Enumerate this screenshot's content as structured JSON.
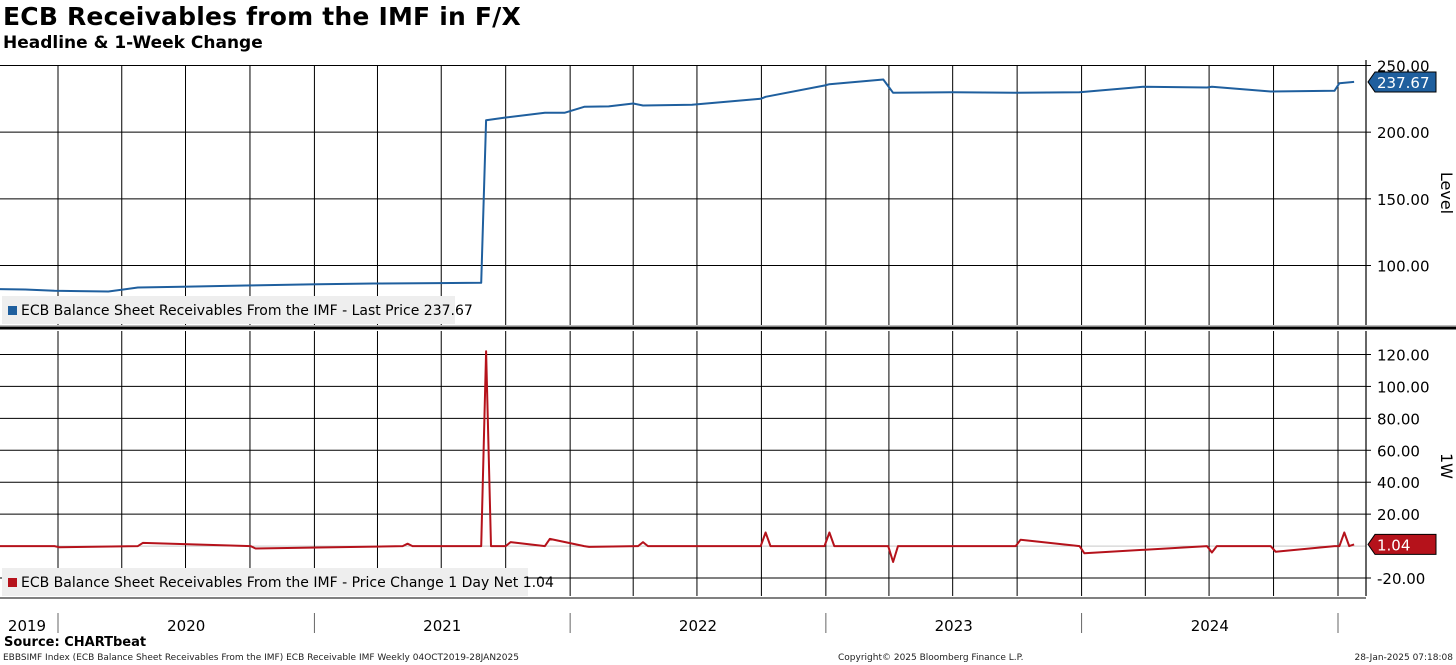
{
  "header": {
    "title": "ECB Receivables from the IMF in F/X",
    "subtitle": "Headline & 1-Week Change"
  },
  "footer": {
    "source": "Source: CHARTbeat",
    "index_info": "EBBSIMF Index (ECB Balance Sheet Receivables From the IMF) ECB Receivable IMF  Weekly 04OCT2019-28JAN2025",
    "copyright": "Copyright© 2025 Bloomberg Finance L.P.",
    "timestamp": "28-Jan-2025 07:18:08"
  },
  "colors": {
    "level_series": "#1f5f9e",
    "change_series": "#b5121b",
    "grid": "#000000",
    "legend_bg": "#eeeeee"
  },
  "chart_data": [
    {
      "type": "line",
      "panel": "upper",
      "ylabel": "Level",
      "ylim": [
        55,
        255
      ],
      "yticks": [
        100,
        150,
        200,
        250
      ],
      "ytick_labels": [
        "100.00",
        "150.00",
        "200.00",
        "250.00"
      ],
      "last_value_label": "237.67",
      "legend": "ECB Balance Sheet Receivables From the IMF - Last Price 237.67",
      "grid": true,
      "series": [
        {
          "name": "ECB Balance Sheet Receivables From the IMF",
          "x": [
            "2019-10-04",
            "2019-11-15",
            "2019-12-27",
            "2020-01-31",
            "2020-03-13",
            "2020-04-24",
            "2020-06-26",
            "2020-09-25",
            "2020-12-25",
            "2021-03-26",
            "2021-06-25",
            "2021-08-27",
            "2021-09-03",
            "2021-10-01",
            "2021-11-26",
            "2021-12-24",
            "2022-01-21",
            "2022-02-25",
            "2022-04-01",
            "2022-04-15",
            "2022-06-24",
            "2022-09-30",
            "2022-10-07",
            "2022-12-30",
            "2023-01-06",
            "2023-03-24",
            "2023-04-07",
            "2023-06-30",
            "2023-09-29",
            "2023-12-29",
            "2024-03-29",
            "2024-06-28",
            "2024-07-05",
            "2024-09-27",
            "2024-12-27",
            "2025-01-03",
            "2025-01-24"
          ],
          "y": [
            82.3,
            82.0,
            81.0,
            80.8,
            80.5,
            83.5,
            84.0,
            85.0,
            85.8,
            86.5,
            86.8,
            87.0,
            209.0,
            211.0,
            214.5,
            214.5,
            219.0,
            219.3,
            221.5,
            220.0,
            220.5,
            225.0,
            226.5,
            235.0,
            236.0,
            239.5,
            229.5,
            230.0,
            229.5,
            230.0,
            234.0,
            233.5,
            234.0,
            230.5,
            231.0,
            236.7,
            237.67
          ]
        }
      ]
    },
    {
      "type": "line",
      "panel": "lower",
      "ylabel": "1W",
      "ylim": [
        -30,
        130
      ],
      "yticks": [
        -20,
        20,
        40,
        60,
        80,
        100,
        120
      ],
      "ytick_labels": [
        "-20.00",
        "20.00",
        "40.00",
        "60.00",
        "80.00",
        "100.00",
        "120.00"
      ],
      "last_value_label": "1.04",
      "legend": "ECB Balance Sheet Receivables From the IMF - Price Change 1 Day Net 1.04",
      "grid": true,
      "series": [
        {
          "name": "ECB Balance Sheet Receivables From the IMF - Price Change 1 Day Net",
          "x": [
            "2019-10-04",
            "2019-12-27",
            "2020-01-03",
            "2020-04-24",
            "2020-05-01",
            "2020-10-02",
            "2020-10-09",
            "2021-05-07",
            "2021-05-14",
            "2021-05-21",
            "2021-08-27",
            "2021-09-03",
            "2021-09-10",
            "2021-10-01",
            "2021-10-08",
            "2021-11-26",
            "2021-12-03",
            "2022-01-21",
            "2022-01-28",
            "2022-04-08",
            "2022-04-15",
            "2022-04-22",
            "2022-09-30",
            "2022-10-07",
            "2022-10-14",
            "2022-12-30",
            "2023-01-06",
            "2023-01-13",
            "2023-03-31",
            "2023-04-07",
            "2023-04-14",
            "2023-09-29",
            "2023-10-06",
            "2023-12-29",
            "2024-01-05",
            "2024-06-28",
            "2024-07-05",
            "2024-07-12",
            "2024-09-27",
            "2024-10-04",
            "2024-12-27",
            "2025-01-03",
            "2025-01-10",
            "2025-01-17",
            "2025-01-24"
          ],
          "y": [
            0.0,
            0.0,
            -0.8,
            0.0,
            2.0,
            0.0,
            -1.5,
            0.0,
            1.5,
            0.0,
            0.0,
            122.0,
            0.0,
            0.0,
            2.5,
            0.0,
            4.5,
            0.0,
            -0.5,
            0.0,
            2.5,
            0.0,
            0.0,
            8.5,
            0.0,
            0.0,
            8.5,
            0.0,
            0.0,
            -10.0,
            0.0,
            0.0,
            4.0,
            0.0,
            -4.5,
            0.0,
            -4.0,
            0.0,
            0.0,
            -3.5,
            0.0,
            0.0,
            8.5,
            0.0,
            1.04
          ]
        }
      ]
    }
  ],
  "x_axis": {
    "year_labels": [
      "2019",
      "2020",
      "2021",
      "2022",
      "2023",
      "2024"
    ]
  }
}
